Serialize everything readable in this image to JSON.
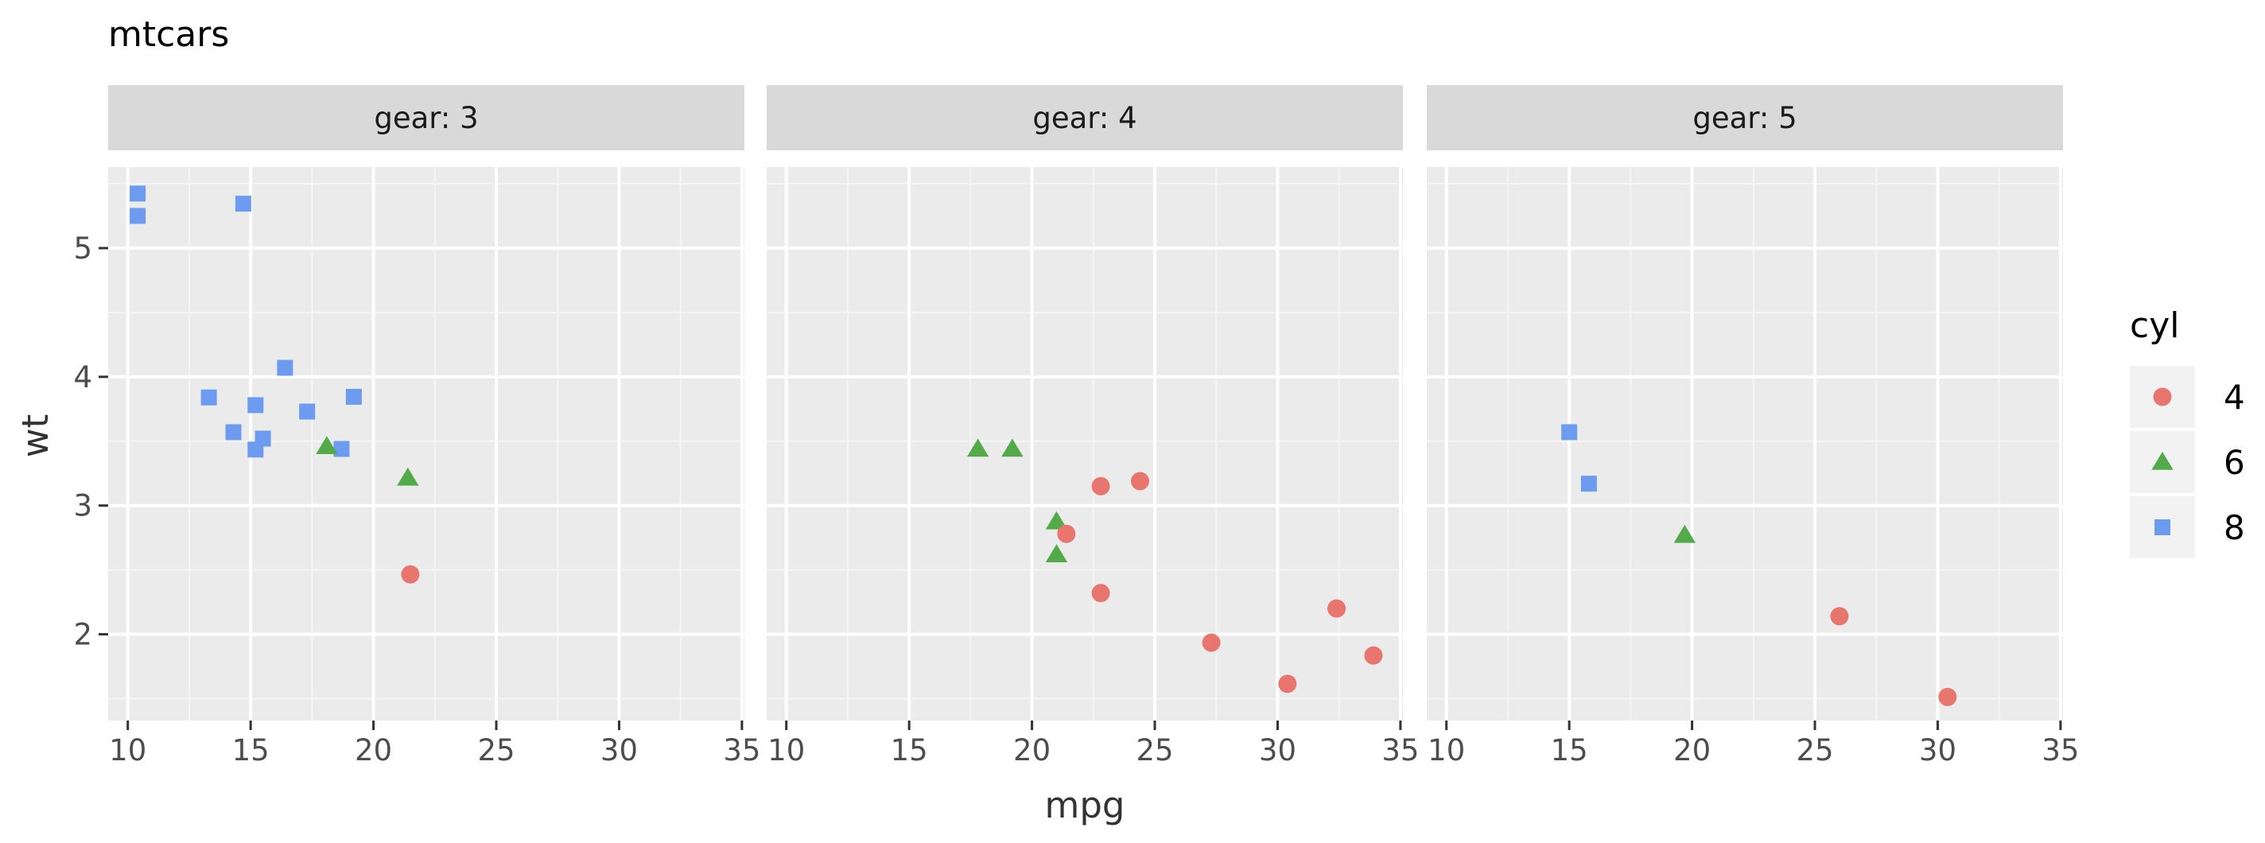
{
  "chart_data": {
    "type": "scatter",
    "title": "mtcars",
    "xlabel": "mpg",
    "ylabel": "wt",
    "xlim": [
      9.2,
      35.1
    ],
    "ylim": [
      1.33,
      5.63
    ],
    "xticks": [
      10,
      15,
      20,
      25,
      30,
      35
    ],
    "yticks": [
      2,
      3,
      4,
      5
    ],
    "grid": true,
    "legend": {
      "title": "cyl",
      "placement": "right",
      "entries": [
        {
          "label": "4",
          "shape": "circle",
          "color": "#E8766E"
        },
        {
          "label": "6",
          "shape": "triangle",
          "color": "#53AA48"
        },
        {
          "label": "8",
          "shape": "square",
          "color": "#6D9BEF"
        }
      ]
    },
    "facets": [
      {
        "label": "gear: 3",
        "points": [
          {
            "mpg": 21.4,
            "wt": 3.215,
            "cyl": "6"
          },
          {
            "mpg": 18.7,
            "wt": 3.44,
            "cyl": "8"
          },
          {
            "mpg": 18.1,
            "wt": 3.46,
            "cyl": "6"
          },
          {
            "mpg": 14.3,
            "wt": 3.57,
            "cyl": "8"
          },
          {
            "mpg": 16.4,
            "wt": 4.07,
            "cyl": "8"
          },
          {
            "mpg": 17.3,
            "wt": 3.73,
            "cyl": "8"
          },
          {
            "mpg": 15.2,
            "wt": 3.78,
            "cyl": "8"
          },
          {
            "mpg": 10.4,
            "wt": 5.25,
            "cyl": "8"
          },
          {
            "mpg": 10.4,
            "wt": 5.424,
            "cyl": "8"
          },
          {
            "mpg": 14.7,
            "wt": 5.345,
            "cyl": "8"
          },
          {
            "mpg": 21.5,
            "wt": 2.465,
            "cyl": "4"
          },
          {
            "mpg": 15.5,
            "wt": 3.52,
            "cyl": "8"
          },
          {
            "mpg": 15.2,
            "wt": 3.435,
            "cyl": "8"
          },
          {
            "mpg": 13.3,
            "wt": 3.84,
            "cyl": "8"
          },
          {
            "mpg": 19.2,
            "wt": 3.845,
            "cyl": "8"
          }
        ]
      },
      {
        "label": "gear: 4",
        "points": [
          {
            "mpg": 21.0,
            "wt": 2.62,
            "cyl": "6"
          },
          {
            "mpg": 21.0,
            "wt": 2.875,
            "cyl": "6"
          },
          {
            "mpg": 22.8,
            "wt": 2.32,
            "cyl": "4"
          },
          {
            "mpg": 24.4,
            "wt": 3.19,
            "cyl": "4"
          },
          {
            "mpg": 22.8,
            "wt": 3.15,
            "cyl": "4"
          },
          {
            "mpg": 19.2,
            "wt": 3.44,
            "cyl": "6"
          },
          {
            "mpg": 17.8,
            "wt": 3.44,
            "cyl": "6"
          },
          {
            "mpg": 32.4,
            "wt": 2.2,
            "cyl": "4"
          },
          {
            "mpg": 30.4,
            "wt": 1.615,
            "cyl": "4"
          },
          {
            "mpg": 33.9,
            "wt": 1.835,
            "cyl": "4"
          },
          {
            "mpg": 27.3,
            "wt": 1.935,
            "cyl": "4"
          },
          {
            "mpg": 21.4,
            "wt": 2.78,
            "cyl": "4"
          }
        ]
      },
      {
        "label": "gear: 5",
        "points": [
          {
            "mpg": 26.0,
            "wt": 2.14,
            "cyl": "4"
          },
          {
            "mpg": 30.4,
            "wt": 1.513,
            "cyl": "4"
          },
          {
            "mpg": 15.8,
            "wt": 3.17,
            "cyl": "8"
          },
          {
            "mpg": 19.7,
            "wt": 2.77,
            "cyl": "6"
          },
          {
            "mpg": 15.0,
            "wt": 3.57,
            "cyl": "8"
          }
        ]
      }
    ]
  }
}
